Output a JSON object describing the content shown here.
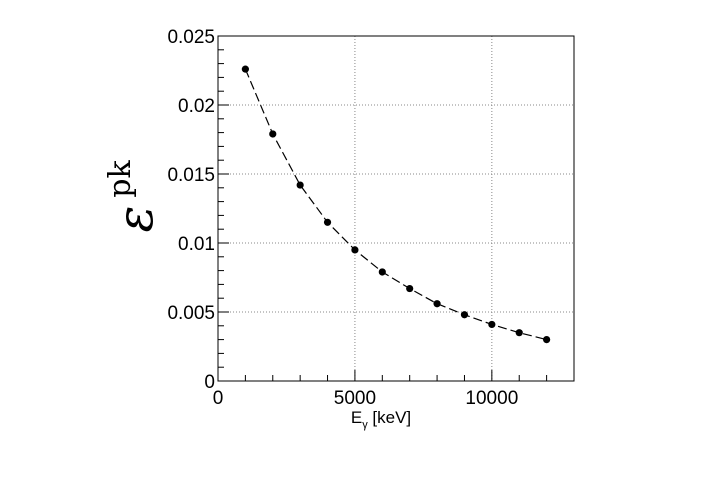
{
  "chart_data": {
    "type": "line",
    "title": "",
    "xlabel_main": "E",
    "xlabel_sub": "γ",
    "xlabel_unit": " [keV]",
    "ylabel_main": "ε",
    "ylabel_sup": "pk",
    "xlim": [
      0,
      13000
    ],
    "ylim": [
      0,
      0.025
    ],
    "x_ticks": [
      0,
      5000,
      10000
    ],
    "x_tick_labels": [
      "0",
      "5000",
      "10000"
    ],
    "y_ticks": [
      0,
      0.005,
      0.01,
      0.015,
      0.02,
      0.025
    ],
    "y_tick_labels": [
      "0",
      "0.005",
      "0.01",
      "0.015",
      "0.02",
      "0.025"
    ],
    "grid": true,
    "line_style": "dashed",
    "marker": "circle",
    "color": "#000000",
    "series": [
      {
        "x": [
          1000,
          2000,
          3000,
          4000,
          5000,
          6000,
          7000,
          8000,
          9000,
          10000,
          11000,
          12000
        ],
        "y": [
          0.0226,
          0.0179,
          0.0142,
          0.0115,
          0.0095,
          0.0079,
          0.0067,
          0.0056,
          0.0048,
          0.0041,
          0.0035,
          0.003
        ]
      }
    ]
  }
}
